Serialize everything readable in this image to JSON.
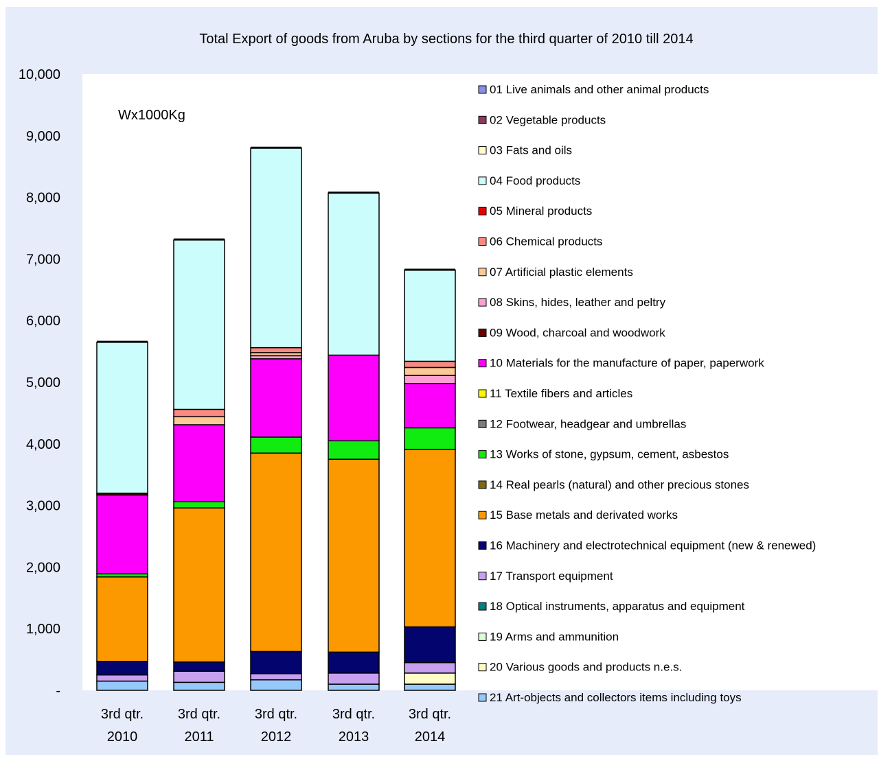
{
  "chart_data": {
    "type": "bar",
    "stacked": true,
    "title": "Total Export of goods from Aruba by sections for the third quarter of 2010 till 2014",
    "annotation": "Wx1000Kg",
    "xlabel": "",
    "ylabel": "",
    "ylim": [
      0,
      10000
    ],
    "yticks": [
      "-",
      "1,000",
      "2,000",
      "3,000",
      "4,000",
      "5,000",
      "6,000",
      "7,000",
      "8,000",
      "9,000",
      "10,000"
    ],
    "categories": [
      [
        "3rd qtr.",
        "2010"
      ],
      [
        "3rd qtr.",
        "2011"
      ],
      [
        "3rd qtr.",
        "2012"
      ],
      [
        "3rd qtr.",
        "2013"
      ],
      [
        "3rd qtr.",
        "2014"
      ]
    ],
    "grid": false,
    "legend_position": "right",
    "colors": {
      "plot_area": "#ffffff",
      "chart_area": "#e6ecfa",
      "bar_outline": "#000000"
    },
    "series": [
      {
        "name": "01 Live animals and other animal products",
        "color": "#8c8ee8",
        "values": [
          0,
          0,
          0,
          0,
          0
        ]
      },
      {
        "name": "02 Vegetable products",
        "color": "#8c3a5c",
        "values": [
          0,
          0,
          0,
          0,
          0
        ]
      },
      {
        "name": "03 Fats and oils",
        "color": "#fffec8",
        "values": [
          0,
          0,
          0,
          0,
          0
        ]
      },
      {
        "name": "04 Food products",
        "color": "#ccfdfd",
        "values": [
          2450,
          2750,
          3240,
          2630,
          1480
        ]
      },
      {
        "name": "05 Mineral products",
        "color": "#e80000",
        "values": [
          0,
          0,
          0,
          0,
          0
        ]
      },
      {
        "name": "06 Chemical products",
        "color": "#f88a82",
        "values": [
          0,
          120,
          80,
          0,
          100
        ]
      },
      {
        "name": "07 Artificial plastic elements",
        "color": "#fcc896",
        "values": [
          0,
          130,
          50,
          0,
          130
        ]
      },
      {
        "name": "08 Skins, hides, leather and peltry",
        "color": "#fca0d2",
        "values": [
          0,
          0,
          50,
          0,
          130
        ]
      },
      {
        "name": "09 Wood, charcoal and woodwork",
        "color": "#6a0000",
        "values": [
          30,
          0,
          0,
          0,
          0
        ]
      },
      {
        "name": "10 Materials for the manufacture of paper, paperwork",
        "color": "#fc00fc",
        "values": [
          1280,
          1250,
          1270,
          1390,
          720
        ]
      },
      {
        "name": "11 Textile fibers and articles",
        "color": "#fcf800",
        "values": [
          0,
          0,
          0,
          0,
          0
        ]
      },
      {
        "name": "12 Footwear, headgear and umbrellas",
        "color": "#7c7c7c",
        "values": [
          0,
          0,
          0,
          0,
          0
        ]
      },
      {
        "name": "13 Works of stone, gypsum, cement, asbestos",
        "color": "#10ec10",
        "values": [
          50,
          100,
          260,
          300,
          350
        ]
      },
      {
        "name": "14 Real pearls (natural) and other precious stones",
        "color": "#7a6a12",
        "values": [
          0,
          0,
          0,
          0,
          0
        ]
      },
      {
        "name": "15 Base metals and derivated works",
        "color": "#fc9800",
        "values": [
          1370,
          2500,
          3220,
          3130,
          2880
        ]
      },
      {
        "name": "16 Machinery and electrotechnical equipment (new & renewed)",
        "color": "#04046e",
        "values": [
          220,
          150,
          360,
          340,
          580
        ]
      },
      {
        "name": "17 Transport equipment",
        "color": "#c8a0f0",
        "values": [
          100,
          180,
          100,
          180,
          170
        ]
      },
      {
        "name": "18 Optical instruments, apparatus and equipment",
        "color": "#008080",
        "values": [
          0,
          0,
          0,
          0,
          0
        ]
      },
      {
        "name": "19 Arms and ammunition",
        "color": "#dafcd8",
        "values": [
          0,
          0,
          0,
          0,
          0
        ]
      },
      {
        "name": "20 Various goods and products n.e.s.",
        "color": "#fffcc8",
        "values": [
          0,
          0,
          0,
          0,
          180
        ]
      },
      {
        "name": "21 Art-objects and collectors items including toys",
        "color": "#96c8fa",
        "values": [
          150,
          130,
          170,
          100,
          100
        ]
      }
    ]
  }
}
